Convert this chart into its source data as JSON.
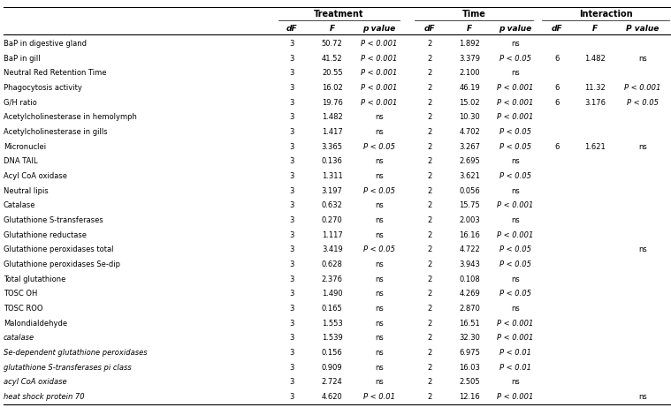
{
  "group_headers": [
    "Treatment",
    "Time",
    "Interaction"
  ],
  "col_headers": [
    "dF",
    "F",
    "p value",
    "dF",
    "F",
    "p value",
    "dF",
    "F",
    "P value"
  ],
  "rows": [
    [
      "BaP in digestive gland",
      "3",
      "50.72",
      "P < 0.001",
      "2",
      "1.892",
      "ns",
      "",
      "",
      ""
    ],
    [
      "BaP in gill",
      "3",
      "41.52",
      "P < 0.001",
      "2",
      "3.379",
      "P < 0.05",
      "6",
      "1.482",
      "ns"
    ],
    [
      "Neutral Red Retention Time",
      "3",
      "20.55",
      "P < 0.001",
      "2",
      "2.100",
      "ns",
      "",
      "",
      ""
    ],
    [
      "Phagocytosis activity",
      "3",
      "16.02",
      "P < 0.001",
      "2",
      "46.19",
      "P < 0.001",
      "6",
      "11.32",
      "P < 0.001"
    ],
    [
      "G/H ratio",
      "3",
      "19.76",
      "P < 0.001",
      "2",
      "15.02",
      "P < 0.001",
      "6",
      "3.176",
      "P < 0.05"
    ],
    [
      "Acetylcholinesterase in hemolymph",
      "3",
      "1.482",
      "ns",
      "2",
      "10.30",
      "P < 0.001",
      "",
      "",
      ""
    ],
    [
      "Acetylcholinesterase in gills",
      "3",
      "1.417",
      "ns",
      "2",
      "4.702",
      "P < 0.05",
      "",
      "",
      ""
    ],
    [
      "Micronuclei",
      "3",
      "3.365",
      "P < 0.05",
      "2",
      "3.267",
      "P < 0.05",
      "6",
      "1.621",
      "ns"
    ],
    [
      "DNA TAIL",
      "3",
      "0.136",
      "ns",
      "2",
      "2.695",
      "ns",
      "",
      "",
      ""
    ],
    [
      "Acyl CoA oxidase",
      "3",
      "1.311",
      "ns",
      "2",
      "3.621",
      "P < 0.05",
      "",
      "",
      ""
    ],
    [
      "Neutral lipis",
      "3",
      "3.197",
      "P < 0.05",
      "2",
      "0.056",
      "ns",
      "",
      "",
      ""
    ],
    [
      "Catalase",
      "3",
      "0.632",
      "ns",
      "2",
      "15.75",
      "P < 0.001",
      "",
      "",
      ""
    ],
    [
      "Glutathione S-transferases",
      "3",
      "0.270",
      "ns",
      "2",
      "2.003",
      "ns",
      "",
      "",
      ""
    ],
    [
      "Glutathione reductase",
      "3",
      "1.117",
      "ns",
      "2",
      "16.16",
      "P < 0.001",
      "",
      "",
      ""
    ],
    [
      "Glutathione peroxidases total",
      "3",
      "3.419",
      "P < 0.05",
      "2",
      "4.722",
      "P < 0.05",
      "",
      "",
      "ns"
    ],
    [
      "Glutathione peroxidases Se-dip",
      "3",
      "0.628",
      "ns",
      "2",
      "3.943",
      "P < 0.05",
      "",
      "",
      ""
    ],
    [
      "Total glutathione",
      "3",
      "2.376",
      "ns",
      "2",
      "0.108",
      "ns",
      "",
      "",
      ""
    ],
    [
      "TOSC OH",
      "3",
      "1.490",
      "ns",
      "2",
      "4.269",
      "P < 0.05",
      "",
      "",
      ""
    ],
    [
      "TOSC ROO",
      "3",
      "0.165",
      "ns",
      "2",
      "2.870",
      "ns",
      "",
      "",
      ""
    ],
    [
      "Malondialdehyde",
      "3",
      "1.553",
      "ns",
      "2",
      "16.51",
      "P < 0.001",
      "",
      "",
      ""
    ],
    [
      "catalase",
      "3",
      "1.539",
      "ns",
      "2",
      "32.30",
      "P < 0.001",
      "",
      "",
      ""
    ],
    [
      "Se-dependent glutathione peroxidases",
      "3",
      "0.156",
      "ns",
      "2",
      "6.975",
      "P < 0.01",
      "",
      "",
      ""
    ],
    [
      "glutathione S-transferases pi class",
      "3",
      "0.909",
      "ns",
      "2",
      "16.03",
      "P < 0.01",
      "",
      "",
      ""
    ],
    [
      "acyl CoA oxidase",
      "3",
      "2.724",
      "ns",
      "2",
      "2.505",
      "ns",
      "",
      "",
      ""
    ],
    [
      "heat shock protein 70",
      "3",
      "4.620",
      "P < 0.01",
      "2",
      "12.16",
      "P < 0.001",
      "",
      "",
      "ns"
    ]
  ],
  "italic_rows": [
    20,
    21,
    22,
    23,
    24
  ],
  "bg_color": "#ffffff"
}
